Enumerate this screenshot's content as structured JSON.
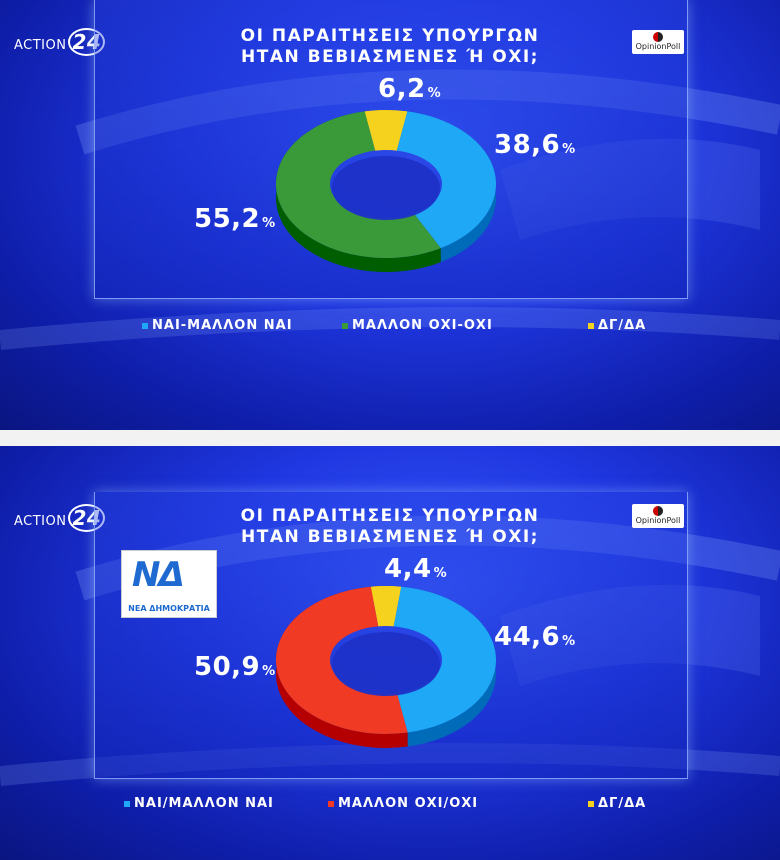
{
  "brand": {
    "logo_text": "ACTION",
    "logo_num": "24",
    "badge": "OpinionPoll"
  },
  "party_logo": {
    "mark": "ΝΔ",
    "name": "ΝΕΑ ΔΗΜΟΚΡΑΤΙΑ"
  },
  "colors": {
    "yes": "#1ea8f5",
    "no_top": "#3a9a3a",
    "no_bottom": "#f03a24",
    "dk": "#f5d21e"
  },
  "chart_data": [
    {
      "type": "pie",
      "title_line1": "ΟΙ ΠΑΡΑΙΤΗΣΕΙΣ ΥΠΟΥΡΓΩΝ",
      "title_line2": "ΗΤΑΝ ΒΕΒΙΑΣΜΕΝΕΣ Ή ΟΧΙ;",
      "categories": [
        "ΝΑΙ-ΜΑΛΛΟΝ ΝΑΙ",
        "ΜΑΛΛΟΝ ΟΧΙ-ΟΧΙ",
        "ΔΓ/ΔΑ"
      ],
      "values": [
        38.6,
        55.2,
        6.2
      ],
      "labels": [
        "38,6",
        "55,2",
        "6,2"
      ],
      "pct": "%"
    },
    {
      "type": "pie",
      "title_line1": "ΟΙ ΠΑΡΑΙΤΗΣΕΙΣ ΥΠΟΥΡΓΩΝ",
      "title_line2": "ΗΤΑΝ ΒΕΒΙΑΣΜΕΝΕΣ Ή ΟΧΙ;",
      "categories": [
        "ΝΑΙ/ΜΑΛΛΟΝ ΝΑΙ",
        "ΜΑΛΛΟΝ ΟΧΙ/ΟΧΙ",
        "ΔΓ/ΔΑ"
      ],
      "values": [
        44.6,
        50.9,
        4.4
      ],
      "labels": [
        "44,6",
        "50,9",
        "4,4"
      ],
      "pct": "%"
    }
  ]
}
